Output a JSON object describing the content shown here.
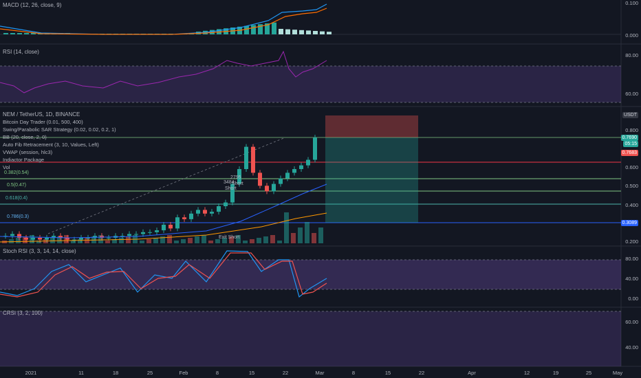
{
  "panes": {
    "macd": {
      "title": "MACD (12, 26, close, 9)",
      "ticks": [
        "0.100",
        "0.000"
      ]
    },
    "rsi": {
      "title": "RSI (14, close)",
      "ticks": [
        "80.00",
        "60.00"
      ]
    },
    "main": {
      "symbol_title": "NEM / TetherUS, 1D, BINANCE",
      "indicators": [
        "Bitcoin Day Trader (0.01, 500, 400)",
        "Swing/Parabolic SAR Strategy (0.02, 0.02, 0.2, 1)",
        "BB (20, close, 2, 0)",
        "Auto Fib Retracement (3, 10, Values, Left)",
        "VWAP (session, hlc3)",
        "Indiactor Package",
        "Vol"
      ],
      "currency": "USDT",
      "ticks": [
        "0.800",
        "0.600",
        "0.500",
        "0.400",
        "0.200"
      ],
      "price_labels": {
        "last": "0.7690",
        "countdown": "05:15",
        "second": "0.7683",
        "fib_low": "0.3089"
      },
      "fib_labels": [
        "0.382(0.54)",
        "0.5(0.47)",
        "0.618(0.4)",
        "0.786(0.3)"
      ],
      "signals": [
        "2795",
        "3484",
        "Short",
        "Short",
        "Exit Short"
      ]
    },
    "stoch": {
      "title": "Stoch RSI (3, 3, 14, 14, close)",
      "ticks": [
        "80.00",
        "40.00",
        "0.00"
      ]
    },
    "crsi": {
      "title": "CRSI (3, 2, 100)",
      "ticks": [
        "60.00",
        "40.00"
      ]
    }
  },
  "time_axis": [
    "2021",
    "11",
    "18",
    "25",
    "Feb",
    "8",
    "15",
    "22",
    "Mar",
    "8",
    "15",
    "22",
    "Apr",
    "12",
    "19",
    "25",
    "May"
  ],
  "colors": {
    "background": "#131722",
    "bull": "#26a69a",
    "bear": "#ef5350",
    "rsi_line": "#9c27b0",
    "band_fill": "#7e57c2",
    "macd_line": "#2196f3",
    "signal_line": "#ff6d00",
    "fib_red": "#f23645",
    "fib_green": "#81c784",
    "fib_blue": "#2962ff"
  }
}
